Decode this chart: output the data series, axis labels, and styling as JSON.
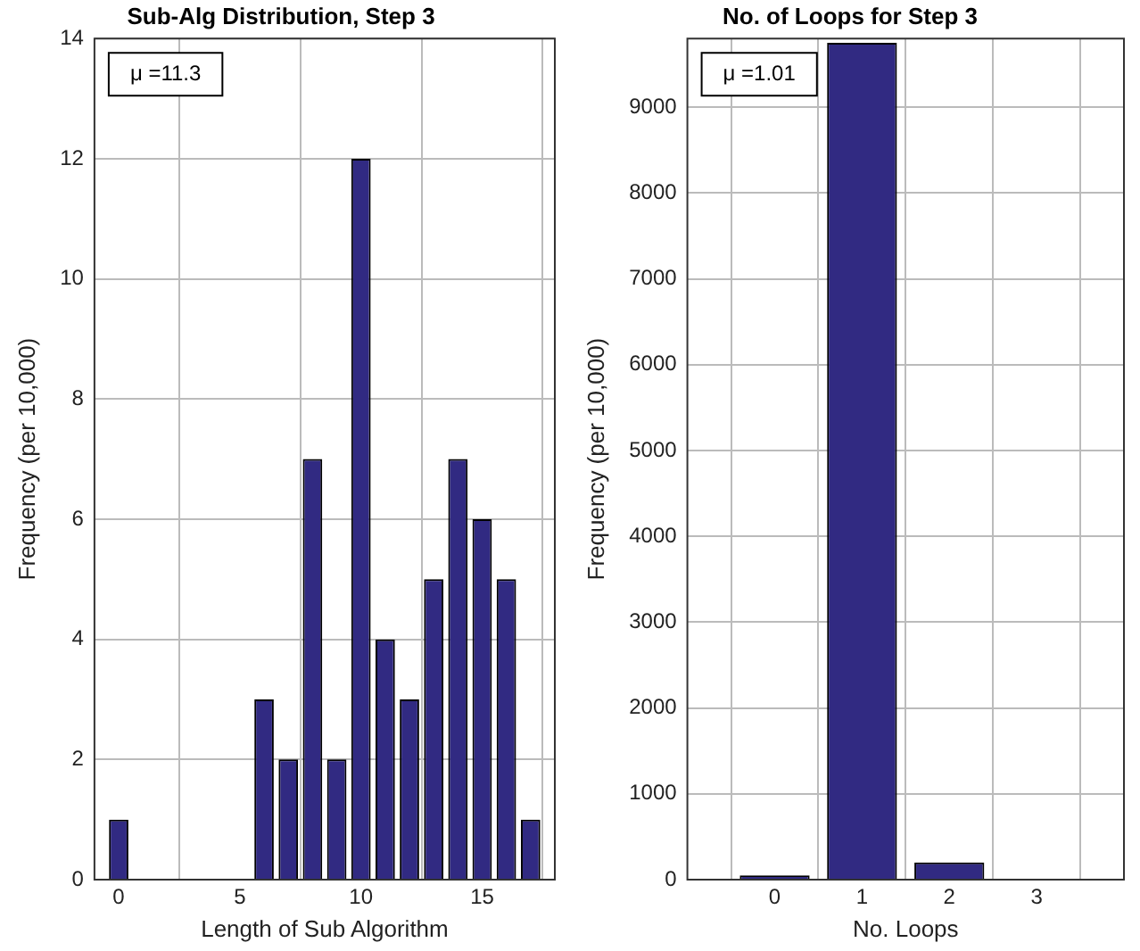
{
  "chart_data": [
    {
      "type": "bar",
      "title": "Sub-Alg Distribution, Step 3",
      "xlabel": "Length of Sub Algorithm",
      "ylabel": "Frequency (per 10,000)",
      "x": [
        0,
        1,
        2,
        3,
        4,
        5,
        6,
        7,
        8,
        9,
        10,
        11,
        12,
        13,
        14,
        15,
        16,
        17
      ],
      "series": [
        {
          "color": "#312a82",
          "values": [
            1,
            0,
            0,
            0,
            0,
            0,
            3,
            2,
            7,
            2,
            12,
            4,
            3,
            5,
            7,
            6,
            5,
            1
          ]
        }
      ],
      "xlim": [
        -1,
        18
      ],
      "xticks": [
        0,
        5,
        10,
        15
      ],
      "ylim": [
        0,
        14
      ],
      "yticks": [
        0,
        2,
        4,
        6,
        8,
        10,
        12,
        14
      ],
      "grid": true,
      "annotations": [
        "μ =11.3"
      ]
    },
    {
      "type": "bar",
      "title": "No. of Loops for Step 3",
      "xlabel": "No. Loops",
      "ylabel": "Frequency (per 10,000)",
      "x": [
        0,
        1,
        2,
        3
      ],
      "series": [
        {
          "color": "#312a82",
          "values": [
            50,
            9750,
            200,
            0
          ]
        }
      ],
      "xlim": [
        -1,
        4
      ],
      "xticks": [
        0,
        1,
        2,
        3
      ],
      "ylim": [
        0,
        9800
      ],
      "yticks": [
        0,
        1000,
        2000,
        3000,
        4000,
        5000,
        6000,
        7000,
        8000,
        9000
      ],
      "grid": true,
      "annotations": [
        "μ =1.01"
      ]
    }
  ]
}
